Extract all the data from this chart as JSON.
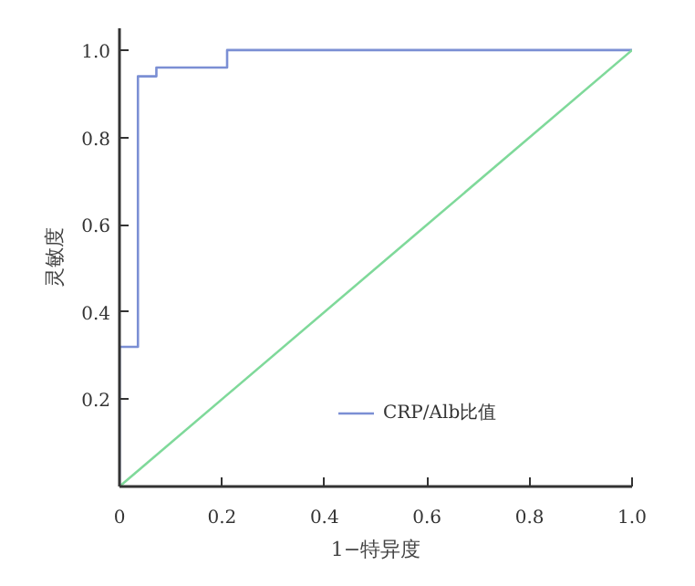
{
  "chart_data": {
    "type": "line",
    "xlabel": "1−特异度",
    "ylabel": "灵敏度",
    "xlim": [
      0,
      1.0
    ],
    "ylim": [
      0,
      1.05
    ],
    "xticks": [
      {
        "value": 0,
        "label": "0"
      },
      {
        "value": 0.2,
        "label": "0.2"
      },
      {
        "value": 0.4,
        "label": "0.4"
      },
      {
        "value": 0.6,
        "label": "0.6"
      },
      {
        "value": 0.8,
        "label": "0.8"
      },
      {
        "value": 1.0,
        "label": "1.0"
      }
    ],
    "yticks": [
      {
        "value": 0.2,
        "label": "0.2"
      },
      {
        "value": 0.4,
        "label": "0.4"
      },
      {
        "value": 0.6,
        "label": "0.6"
      },
      {
        "value": 0.8,
        "label": "0.8"
      },
      {
        "value": 1.0,
        "label": "1.0"
      }
    ],
    "series": [
      {
        "name": "CRP/Alb比值",
        "color": "#7b8fd4",
        "x": [
          0,
          0,
          0.036,
          0.036,
          0.072,
          0.072,
          0.21,
          0.21,
          1.0
        ],
        "values": [
          0,
          0.32,
          0.32,
          0.94,
          0.94,
          0.96,
          0.96,
          1.0,
          1.0
        ]
      },
      {
        "color": "#7fd99a",
        "x": [
          0,
          1.0
        ],
        "values": [
          0,
          1.0
        ]
      }
    ],
    "grid": false,
    "legend": "bottom right",
    "line_style": "solid",
    "marker": "none"
  }
}
